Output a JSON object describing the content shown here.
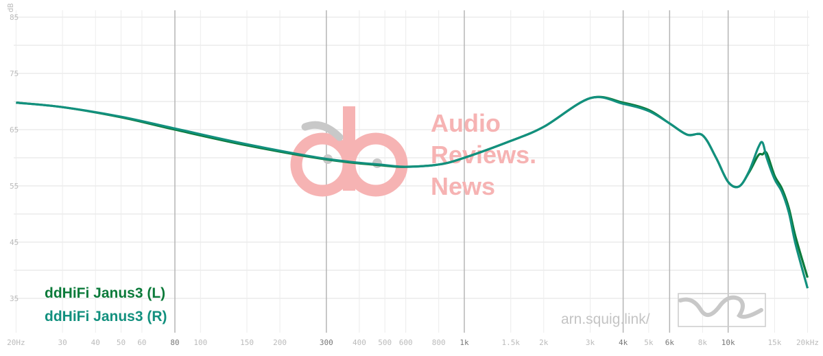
{
  "chart_data": {
    "type": "line",
    "xscale": "log",
    "xlim": [
      20,
      20000
    ],
    "ylim": [
      30,
      86
    ],
    "ylabel": "dB",
    "grid": true,
    "legend_placement": "bottom-left",
    "x_ticks": [
      {
        "v": 20,
        "label": "20Hz",
        "major": false
      },
      {
        "v": 30,
        "label": "30",
        "major": false
      },
      {
        "v": 40,
        "label": "40",
        "major": false
      },
      {
        "v": 50,
        "label": "50",
        "major": false
      },
      {
        "v": 60,
        "label": "60",
        "major": false
      },
      {
        "v": 80,
        "label": "80",
        "major": true
      },
      {
        "v": 100,
        "label": "100",
        "major": false
      },
      {
        "v": 150,
        "label": "150",
        "major": false
      },
      {
        "v": 200,
        "label": "200",
        "major": false
      },
      {
        "v": 300,
        "label": "300",
        "major": true
      },
      {
        "v": 400,
        "label": "400",
        "major": false
      },
      {
        "v": 500,
        "label": "500",
        "major": false
      },
      {
        "v": 600,
        "label": "600",
        "major": false
      },
      {
        "v": 800,
        "label": "800",
        "major": false
      },
      {
        "v": 1000,
        "label": "1k",
        "major": true
      },
      {
        "v": 1500,
        "label": "1.5k",
        "major": false
      },
      {
        "v": 2000,
        "label": "2k",
        "major": false
      },
      {
        "v": 3000,
        "label": "3k",
        "major": false
      },
      {
        "v": 4000,
        "label": "4k",
        "major": true
      },
      {
        "v": 5000,
        "label": "5k",
        "major": false
      },
      {
        "v": 6000,
        "label": "6k",
        "major": true
      },
      {
        "v": 8000,
        "label": "8k",
        "major": false
      },
      {
        "v": 10000,
        "label": "10k",
        "major": true
      },
      {
        "v": 15000,
        "label": "15k",
        "major": false
      },
      {
        "v": 20000,
        "label": "20kHz",
        "major": false
      }
    ],
    "y_ticks": [
      {
        "v": 85,
        "label": "85"
      },
      {
        "v": 75,
        "label": "75"
      },
      {
        "v": 65,
        "label": "65"
      },
      {
        "v": 55,
        "label": "55"
      },
      {
        "v": 45,
        "label": "45"
      },
      {
        "v": 35,
        "label": "35"
      }
    ],
    "series": [
      {
        "name": "ddHiFi Janus3 (L)",
        "color": "#0b7a3a",
        "x": [
          20,
          30,
          50,
          80,
          150,
          300,
          500,
          600,
          800,
          1000,
          1500,
          2000,
          3000,
          4000,
          5000,
          6000,
          7000,
          8000,
          9000,
          10000,
          11000,
          12000,
          13000,
          13500,
          14000,
          15000,
          16000,
          17000,
          18000,
          20000
        ],
        "y": [
          69.8,
          69.0,
          67.2,
          65.0,
          62.2,
          59.7,
          58.6,
          58.4,
          58.8,
          60.0,
          63.0,
          65.5,
          70.6,
          69.8,
          68.5,
          66.1,
          64.1,
          64.0,
          60.0,
          55.7,
          54.9,
          57.4,
          60.4,
          60.6,
          60.8,
          56.8,
          54.5,
          51.0,
          46.0,
          38.7
        ]
      },
      {
        "name": "ddHiFi Janus3 (R)",
        "color": "#12907e",
        "x": [
          20,
          30,
          50,
          80,
          150,
          300,
          500,
          600,
          800,
          1000,
          1500,
          2000,
          3000,
          4000,
          5000,
          6000,
          7000,
          8000,
          9000,
          10000,
          11000,
          12000,
          13000,
          13500,
          14000,
          15000,
          16000,
          17000,
          18000,
          20000
        ],
        "y": [
          69.8,
          69.0,
          67.3,
          65.2,
          62.4,
          59.8,
          58.7,
          58.4,
          58.8,
          60.0,
          63.0,
          65.5,
          70.6,
          69.6,
          68.3,
          66.1,
          64.1,
          64.0,
          60.0,
          55.7,
          54.9,
          57.6,
          61.8,
          62.7,
          60.0,
          56.2,
          53.9,
          50.2,
          44.7,
          36.8
        ]
      }
    ]
  },
  "watermark": {
    "line1": "Audio",
    "line2": "Reviews.",
    "line3": "News"
  },
  "site_label": "arn.squig.link/",
  "accent_watermark": "#f6b3b3"
}
